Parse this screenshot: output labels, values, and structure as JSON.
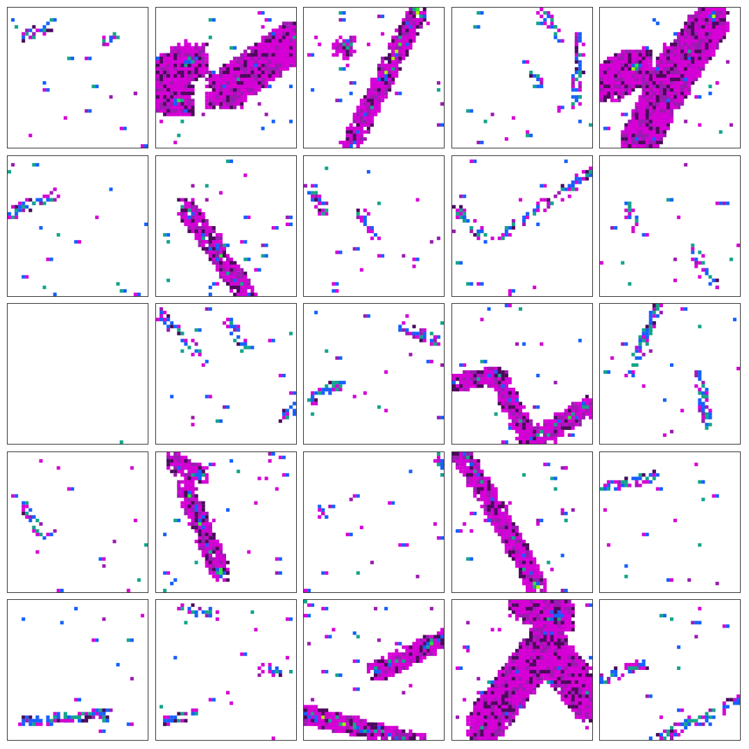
{
  "palette": {
    "magenta": "#d600d6",
    "violet": "#9b1bb0",
    "blue": "#1460ff",
    "teal": "#12a58a",
    "green": "#2ee62e",
    "lime": "#a8ff00",
    "dark": "#4a0a5a"
  },
  "tiles": [
    {
      "row": 0,
      "col": 0,
      "pattern": "sparse"
    },
    {
      "row": 0,
      "col": 1,
      "pattern": "blob"
    },
    {
      "row": 0,
      "col": 2,
      "pattern": "streak"
    },
    {
      "row": 0,
      "col": 3,
      "pattern": "sparse"
    },
    {
      "row": 0,
      "col": 4,
      "pattern": "blob"
    },
    {
      "row": 1,
      "col": 0,
      "pattern": "sparse"
    },
    {
      "row": 1,
      "col": 1,
      "pattern": "streak"
    },
    {
      "row": 1,
      "col": 2,
      "pattern": "sparse"
    },
    {
      "row": 1,
      "col": 3,
      "pattern": "sparse"
    },
    {
      "row": 1,
      "col": 4,
      "pattern": "sparse"
    },
    {
      "row": 2,
      "col": 0,
      "pattern": "empty"
    },
    {
      "row": 2,
      "col": 1,
      "pattern": "sparse"
    },
    {
      "row": 2,
      "col": 2,
      "pattern": "sparse"
    },
    {
      "row": 2,
      "col": 3,
      "pattern": "streak"
    },
    {
      "row": 2,
      "col": 4,
      "pattern": "sparse"
    },
    {
      "row": 3,
      "col": 0,
      "pattern": "sparse"
    },
    {
      "row": 3,
      "col": 1,
      "pattern": "streak"
    },
    {
      "row": 3,
      "col": 2,
      "pattern": "sparse"
    },
    {
      "row": 3,
      "col": 3,
      "pattern": "streak"
    },
    {
      "row": 3,
      "col": 4,
      "pattern": "sparse"
    },
    {
      "row": 4,
      "col": 0,
      "pattern": "sparse"
    },
    {
      "row": 4,
      "col": 1,
      "pattern": "sparse"
    },
    {
      "row": 4,
      "col": 2,
      "pattern": "streak"
    },
    {
      "row": 4,
      "col": 3,
      "pattern": "blob"
    },
    {
      "row": 4,
      "col": 4,
      "pattern": "sparse"
    }
  ]
}
